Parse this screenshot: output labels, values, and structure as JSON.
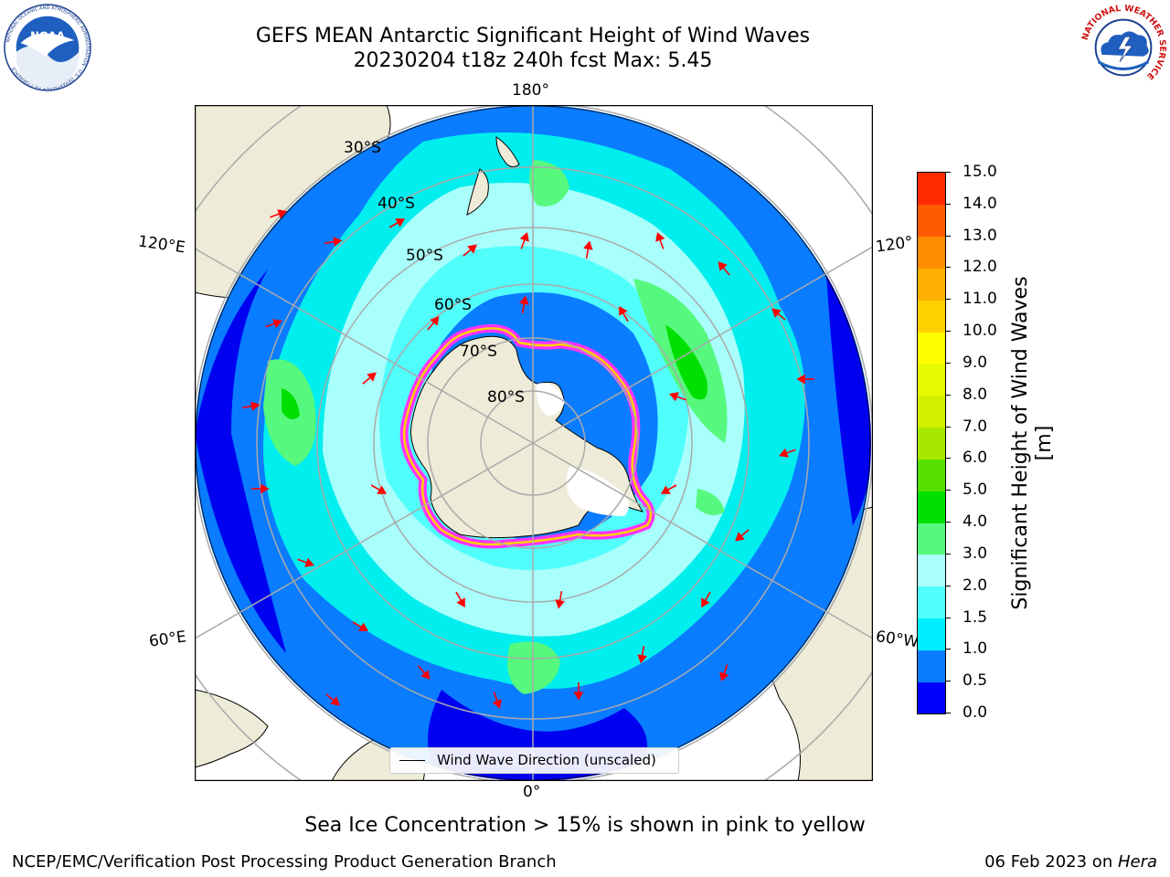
{
  "header": {
    "title_line1": "GEFS MEAN Antarctic Significant Height of Wind Waves",
    "title_line2": "20230204 t18z 240h fcst   Max: 5.45"
  },
  "map": {
    "projection": "south-polar-stereographic",
    "longitude_labels": {
      "top": "180°",
      "bottom": "0°",
      "upper_left": "120°E",
      "lower_left": "60°E",
      "upper_right": "120°W",
      "lower_right": "60°W"
    },
    "latitude_labels": [
      "30°S",
      "40°S",
      "50°S",
      "60°S",
      "70°S",
      "80°S"
    ],
    "legend_entry": "Wind Wave Direction (unscaled)",
    "colors": {
      "land": "#eeecd8",
      "ocean_calm": "#0000f0",
      "ocean_low": "#0a7cff",
      "ocean_mid": "#00eeee",
      "ocean_high": "#60ff70"
    }
  },
  "colorbar": {
    "label": "Significant Height of Wind Waves [m]",
    "ticks": [
      "0.0",
      "0.5",
      "1.0",
      "1.5",
      "2.0",
      "3.0",
      "4.0",
      "5.0",
      "6.0",
      "7.0",
      "8.0",
      "9.0",
      "10.0",
      "11.0",
      "12.0",
      "13.0",
      "14.0",
      "15.0"
    ],
    "colors": [
      "#0000ff",
      "#0a7cff",
      "#00eeff",
      "#50fefc",
      "#a8fffc",
      "#56f97e",
      "#00e000",
      "#56e000",
      "#a8e800",
      "#d4f000",
      "#e8fa00",
      "#ffff00",
      "#ffd000",
      "#ffb000",
      "#ff8c00",
      "#ff5a00",
      "#ff2a00"
    ]
  },
  "footer": {
    "ice_note": "Sea Ice Concentration > 15% is shown in pink to yellow",
    "credit": "NCEP/EMC/Verification Post Processing Product Generation Branch",
    "date": "06 Feb 2023 on ",
    "host": "Hera"
  },
  "logos": {
    "noaa_text": "NOAA",
    "noaa_ring": "NATIONAL OCEANIC AND ATMOSPHERIC ADMINISTRATION · U.S. DEPARTMENT OF COMMERCE",
    "nws_ring": "NATIONAL WEATHER SERVICE"
  }
}
